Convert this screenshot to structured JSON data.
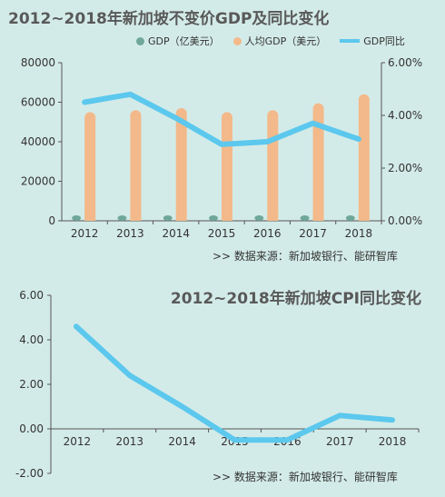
{
  "charts": [
    {
      "title": "2012~2018年新加坡不变价GDP及同比变化",
      "source": ">>  数据来源：新加坡银行、能研智库",
      "legend": [
        {
          "label": "GDP（亿美元）",
          "kind": "dot",
          "color": "#6fa89a"
        },
        {
          "label": "人均GDP（美元）",
          "kind": "dot",
          "color": "#f3b98a"
        },
        {
          "label": "GDP同比",
          "kind": "line",
          "color": "#5cc8ee"
        }
      ]
    },
    {
      "title": "2012~2018年新加坡CPI同比变化",
      "source": ">>  数据来源：新加坡银行、能研智库"
    }
  ],
  "chart_data": [
    {
      "type": "bar",
      "title": "2012~2018年新加坡不变价GDP及同比变化",
      "categories": [
        "2012",
        "2013",
        "2014",
        "2015",
        "2016",
        "2017",
        "2018"
      ],
      "ylim": [
        0,
        80000
      ],
      "yticks": [
        "0",
        "20000",
        "40000",
        "60000",
        "80000"
      ],
      "y2lim": [
        0,
        0.06
      ],
      "y2ticks": [
        "0.00%",
        "2.00%",
        "4.00%",
        "6.00%"
      ],
      "legend_position": "top",
      "series": [
        {
          "name": "GDP（亿美元）",
          "kind": "bar",
          "axis": "left",
          "color": "#6fa89a",
          "values": [
            1000,
            1000,
            1000,
            1000,
            1000,
            1000,
            1500
          ]
        },
        {
          "name": "人均GDP（美元）",
          "kind": "bar",
          "axis": "left",
          "color": "#f3b98a",
          "values": [
            55000,
            56000,
            57000,
            55000,
            56000,
            59500,
            64000
          ]
        },
        {
          "name": "GDP同比",
          "kind": "line",
          "axis": "right",
          "color": "#5cc8ee",
          "values": [
            0.045,
            0.048,
            0.039,
            0.029,
            0.03,
            0.037,
            0.031
          ]
        }
      ]
    },
    {
      "type": "line",
      "title": "2012~2018年新加坡CPI同比变化",
      "categories": [
        "2012",
        "2013",
        "2014",
        "2015",
        "2016",
        "2017",
        "2018"
      ],
      "ylim": [
        -2,
        6
      ],
      "yticks": [
        "-2.00",
        "0.00",
        "2.00",
        "4.00",
        "6.00"
      ],
      "series": [
        {
          "kind": "line",
          "color": "#5cc8ee",
          "values": [
            4.6,
            2.4,
            1.0,
            -0.5,
            -0.5,
            0.6,
            0.4
          ]
        }
      ]
    }
  ]
}
